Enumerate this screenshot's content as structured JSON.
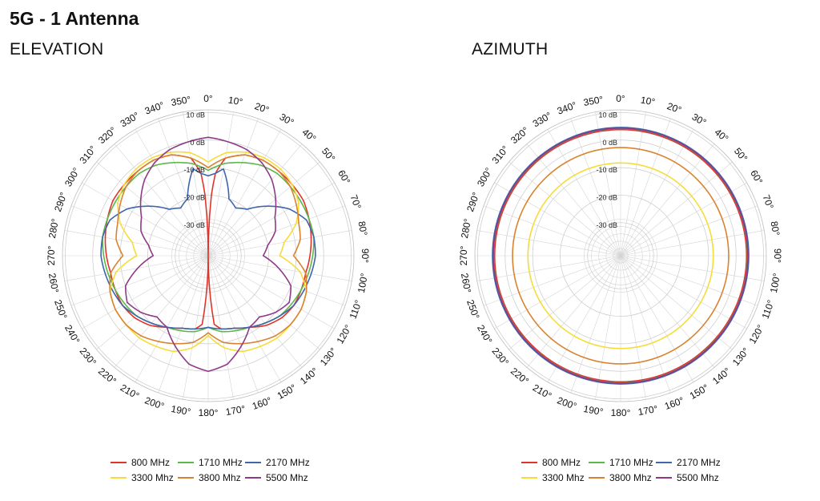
{
  "page": {
    "title": "5G - 1 Antenna"
  },
  "chart_data": [
    {
      "type": "polar-line",
      "subtitle": "ELEVATION",
      "angle_ticks": [
        "0°",
        "10°",
        "20°",
        "30°",
        "40°",
        "50°",
        "60°",
        "70°",
        "80°",
        "90°",
        "100°",
        "110°",
        "120°",
        "130°",
        "140°",
        "150°",
        "160°",
        "170°",
        "180°",
        "190°",
        "200°",
        "210°",
        "220°",
        "230°",
        "240°",
        "250°",
        "260°",
        "270°",
        "280°",
        "290°",
        "300°",
        "310°",
        "320°",
        "330°",
        "340°",
        "350°"
      ],
      "ring_values": [
        10,
        0,
        -10,
        -20,
        -30
      ],
      "ring_labels": [
        "10 dB",
        "0 dB",
        "-10 dB",
        "-20 dB",
        "-30 dB"
      ],
      "r_range": [
        -42,
        11
      ],
      "angle_direction": "clockwise",
      "zero_position": "top",
      "grid": true,
      "legend_position": "bottom",
      "series": [
        {
          "name": "800 MHz",
          "color": "#e0342b",
          "angles": [
            0,
            3,
            5,
            10,
            20,
            30,
            40,
            50,
            60,
            70,
            80,
            90,
            100,
            110,
            120,
            130,
            140,
            150,
            160,
            170,
            175,
            180
          ],
          "values": [
            -42,
            -20,
            -12,
            -6,
            -3,
            -2,
            -2,
            -2,
            -2,
            -3,
            -4,
            -5,
            -6,
            -6,
            -6,
            -7,
            -9,
            -12,
            -14,
            -15,
            -17,
            -42
          ]
        },
        {
          "name": "1710 MHz",
          "color": "#5cb84a",
          "angles": [
            0,
            10,
            20,
            30,
            40,
            50,
            60,
            70,
            80,
            90,
            100,
            110,
            120,
            130,
            140,
            150,
            160,
            170,
            180
          ],
          "values": [
            -11,
            -8,
            -6,
            -4,
            -3,
            -3,
            -3,
            -3,
            -3,
            -4,
            -5,
            -6,
            -7,
            -8,
            -10,
            -12,
            -13,
            -14,
            -16
          ]
        },
        {
          "name": "2170 MHz",
          "color": "#3f65ad",
          "angles": [
            0,
            5,
            10,
            20,
            30,
            40,
            50,
            60,
            70,
            80,
            90,
            100,
            110,
            120,
            130,
            140,
            150,
            160,
            170,
            180
          ],
          "values": [
            -13,
            -12,
            -10,
            -20,
            -22,
            -20,
            -14,
            -8,
            -4,
            -3,
            -3,
            -4,
            -5,
            -6,
            -8,
            -10,
            -12,
            -14,
            -15,
            -16
          ]
        },
        {
          "name": "3300 Mhz",
          "color": "#f5dc3a",
          "angles": [
            0,
            10,
            20,
            30,
            40,
            50,
            60,
            70,
            80,
            90,
            100,
            110,
            120,
            130,
            140,
            150,
            160,
            170,
            180
          ],
          "values": [
            -8,
            -4,
            -2,
            -1,
            -1,
            -2,
            -4,
            -8,
            -14,
            -16,
            -8,
            -4,
            -3,
            -3,
            -3,
            -4,
            -5,
            -8,
            -13
          ]
        },
        {
          "name": "3800 Mhz",
          "color": "#d98330",
          "angles": [
            0,
            10,
            20,
            30,
            40,
            50,
            60,
            70,
            80,
            90,
            100,
            110,
            120,
            130,
            140,
            150,
            160,
            170,
            180
          ],
          "values": [
            -10,
            -6,
            -3,
            -2,
            -2,
            -3,
            -5,
            -7,
            -8,
            -11,
            -6,
            -4,
            -3,
            -3,
            -4,
            -6,
            -8,
            -10,
            -14
          ]
        },
        {
          "name": "5500 Mhz",
          "color": "#8e3a88",
          "angles": [
            0,
            10,
            20,
            30,
            40,
            50,
            60,
            70,
            80,
            90,
            100,
            110,
            120,
            130,
            140,
            150,
            160,
            170,
            180
          ],
          "values": [
            1,
            0,
            -1,
            -3,
            -6,
            -10,
            -14,
            -16,
            -20,
            -22,
            -16,
            -10,
            -8,
            -10,
            -13,
            -12,
            -7,
            -2,
            0
          ]
        }
      ]
    },
    {
      "type": "polar-line",
      "subtitle": "AZIMUTH",
      "angle_ticks": [
        "0°",
        "10°",
        "20°",
        "30°",
        "40°",
        "50°",
        "60°",
        "70°",
        "80°",
        "90°",
        "100°",
        "110°",
        "120°",
        "130°",
        "140°",
        "150°",
        "160°",
        "170°",
        "180°",
        "190°",
        "200°",
        "210°",
        "220°",
        "230°",
        "240°",
        "250°",
        "260°",
        "270°",
        "280°",
        "290°",
        "300°",
        "310°",
        "320°",
        "330°",
        "340°",
        "350°"
      ],
      "ring_values": [
        10,
        0,
        -10,
        -20,
        -30
      ],
      "ring_labels": [
        "10 dB",
        "0 dB",
        "-10 dB",
        "-20 dB",
        "-30 dB"
      ],
      "r_range": [
        -42,
        11
      ],
      "angle_direction": "clockwise",
      "zero_position": "top",
      "grid": true,
      "legend_position": "bottom",
      "series": [
        {
          "name": "800 MHz",
          "color": "#e0342b",
          "values_constant": 3.8
        },
        {
          "name": "1710 MHz",
          "color": "#5cb84a",
          "values_constant": 4.2
        },
        {
          "name": "2170 MHz",
          "color": "#3f65ad",
          "values_constant": 4.6
        },
        {
          "name": "3300 Mhz",
          "color": "#f5dc3a",
          "values_constant": -8.3
        },
        {
          "name": "3800 Mhz",
          "color": "#d98330",
          "values_constant": -2.7
        },
        {
          "name": "5500 Mhz",
          "color": "#8e3a88",
          "values_constant": 4.3
        }
      ]
    }
  ]
}
